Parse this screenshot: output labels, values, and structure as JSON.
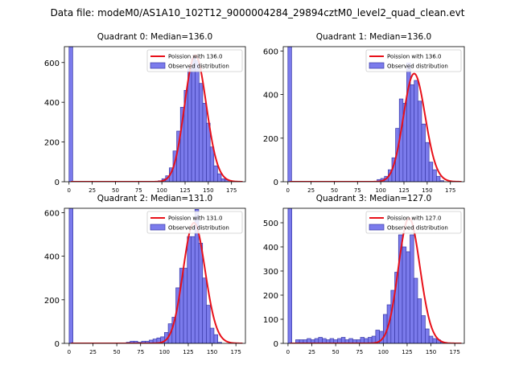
{
  "figure_title": "Data file: modeM0/AS1A10_102T12_9000004284_29894cztM0_level2_quad_clean.evt",
  "colors": {
    "bar_fill": "#7b7bec",
    "bar_edge": "#3a3aa8",
    "curve": "#e8111a",
    "axis": "#000000"
  },
  "legend_labels": {
    "observed": "Observed distribution"
  },
  "chart_data": [
    {
      "type": "bar",
      "title": "Quadrant 0: Median=136.0",
      "median": 136.0,
      "poisson_label": "Poission with 136.0",
      "legend_position": "top-right",
      "xlim": [
        -5,
        190
      ],
      "ylim": [
        0,
        680
      ],
      "bin_width": 4,
      "xticks": [
        0,
        25,
        50,
        75,
        100,
        125,
        150,
        175
      ],
      "yticks": [
        0,
        200,
        400,
        600
      ],
      "bins": [
        0,
        4,
        8,
        12,
        16,
        20,
        24,
        28,
        32,
        36,
        40,
        44,
        48,
        52,
        56,
        60,
        64,
        68,
        72,
        76,
        80,
        84,
        88,
        92,
        96,
        100,
        104,
        108,
        112,
        116,
        120,
        124,
        128,
        132,
        136,
        140,
        144,
        148,
        152,
        156,
        160,
        164,
        168,
        172,
        176,
        180
      ],
      "values": [
        680,
        0,
        0,
        0,
        0,
        0,
        0,
        0,
        0,
        0,
        0,
        0,
        0,
        0,
        0,
        0,
        0,
        0,
        0,
        0,
        0,
        0,
        0,
        0,
        5,
        15,
        30,
        70,
        155,
        255,
        375,
        460,
        570,
        625,
        610,
        495,
        395,
        295,
        175,
        80,
        40,
        15,
        10,
        0,
        0,
        0
      ]
    },
    {
      "type": "bar",
      "title": "Quadrant 1: Median=136.0",
      "median": 136.0,
      "poisson_label": "Poission with 136.0",
      "legend_position": "top-right",
      "xlim": [
        -5,
        190
      ],
      "ylim": [
        0,
        620
      ],
      "bin_width": 4,
      "xticks": [
        0,
        25,
        50,
        75,
        100,
        125,
        150,
        175
      ],
      "yticks": [
        0,
        200,
        400,
        600
      ],
      "bins": [
        0,
        4,
        8,
        12,
        16,
        20,
        24,
        28,
        32,
        36,
        40,
        44,
        48,
        52,
        56,
        60,
        64,
        68,
        72,
        76,
        80,
        84,
        88,
        92,
        96,
        100,
        104,
        108,
        112,
        116,
        120,
        124,
        128,
        132,
        136,
        140,
        144,
        148,
        152,
        156,
        160,
        164,
        168,
        172,
        176,
        180
      ],
      "values": [
        620,
        0,
        0,
        0,
        0,
        0,
        0,
        0,
        0,
        0,
        0,
        0,
        0,
        0,
        0,
        0,
        0,
        0,
        0,
        0,
        0,
        0,
        0,
        0,
        10,
        15,
        25,
        55,
        110,
        245,
        380,
        360,
        545,
        445,
        465,
        370,
        265,
        180,
        90,
        55,
        25,
        5,
        0,
        0,
        0,
        0
      ]
    },
    {
      "type": "bar",
      "title": "Quadrant 2: Median=131.0",
      "median": 131.0,
      "poisson_label": "Poission with 131.0",
      "legend_position": "top-right",
      "xlim": [
        -5,
        185
      ],
      "ylim": [
        0,
        620
      ],
      "bin_width": 4,
      "xticks": [
        0,
        25,
        50,
        75,
        100,
        125,
        150,
        175
      ],
      "yticks": [
        0,
        200,
        400,
        600
      ],
      "bins": [
        0,
        4,
        8,
        12,
        16,
        20,
        24,
        28,
        32,
        36,
        40,
        44,
        48,
        52,
        56,
        60,
        64,
        68,
        72,
        76,
        80,
        84,
        88,
        92,
        96,
        100,
        104,
        108,
        112,
        116,
        120,
        124,
        128,
        132,
        136,
        140,
        144,
        148,
        152,
        156,
        160,
        164,
        168,
        172,
        176
      ],
      "values": [
        620,
        0,
        0,
        0,
        0,
        0,
        0,
        0,
        0,
        0,
        0,
        0,
        0,
        0,
        0,
        5,
        10,
        10,
        5,
        10,
        10,
        15,
        20,
        25,
        30,
        50,
        90,
        120,
        255,
        345,
        345,
        490,
        490,
        615,
        460,
        300,
        175,
        70,
        40,
        5,
        0,
        0,
        0,
        0,
        0
      ]
    },
    {
      "type": "bar",
      "title": "Quadrant 3: Median=127.0",
      "median": 127.0,
      "poisson_label": "Poission with 127.0",
      "legend_position": "top-right",
      "xlim": [
        -5,
        185
      ],
      "ylim": [
        0,
        560
      ],
      "bin_width": 4,
      "xticks": [
        0,
        25,
        50,
        75,
        100,
        125,
        150,
        175
      ],
      "yticks": [
        0,
        100,
        200,
        300,
        400,
        500
      ],
      "bins": [
        0,
        4,
        8,
        12,
        16,
        20,
        24,
        28,
        32,
        36,
        40,
        44,
        48,
        52,
        56,
        60,
        64,
        68,
        72,
        76,
        80,
        84,
        88,
        92,
        96,
        100,
        104,
        108,
        112,
        116,
        120,
        124,
        128,
        132,
        136,
        140,
        144,
        148,
        152,
        156,
        160,
        164,
        168,
        172,
        176
      ],
      "values": [
        560,
        0,
        15,
        15,
        15,
        20,
        15,
        20,
        25,
        20,
        15,
        20,
        15,
        20,
        25,
        15,
        20,
        15,
        15,
        25,
        20,
        25,
        30,
        55,
        50,
        120,
        160,
        220,
        295,
        450,
        400,
        380,
        450,
        270,
        185,
        115,
        60,
        30,
        20,
        15,
        5,
        0,
        0,
        0,
        0
      ]
    }
  ]
}
